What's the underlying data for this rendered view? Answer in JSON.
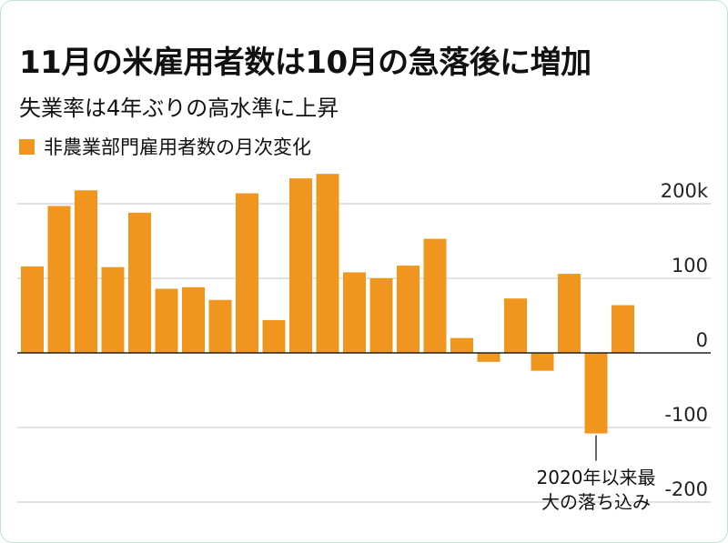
{
  "header": {
    "title": "11月の米雇用者数は10月の急落後に増加",
    "subtitle": "失業率は4年ぶりの高水準に上昇"
  },
  "colors": {
    "bar": "#f0961e",
    "axis": "#222222",
    "grid": "#d9d9d9",
    "border": "#bfe3cf"
  },
  "chart_data": {
    "type": "bar",
    "series": [
      {
        "name": "非農業部門雇用者数の月次変化",
        "values": [
          116,
          197,
          218,
          115,
          188,
          86,
          88,
          71,
          214,
          44,
          234,
          240,
          108,
          100,
          117,
          153,
          20,
          -12,
          73,
          -24,
          106,
          -108,
          64,
          null
        ]
      }
    ],
    "ylim": [
      -200,
      200
    ],
    "yticks": [
      -200,
      -100,
      0,
      100,
      200
    ],
    "ytick_labels": [
      "-200",
      "-100",
      "0",
      "100",
      "200k"
    ],
    "annotation": {
      "text_lines": [
        "2020年以来最",
        "大の落ち込み"
      ],
      "bar_index": 21
    },
    "grid": true,
    "legend_position": "top-left"
  }
}
